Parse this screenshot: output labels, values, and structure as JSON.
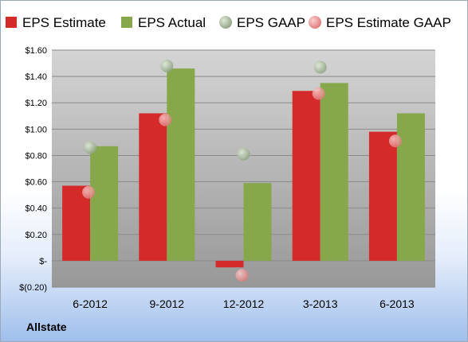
{
  "company_label": "Allstate",
  "chart_data": {
    "type": "bar",
    "categories": [
      "6-2012",
      "9-2012",
      "12-2012",
      "3-2013",
      "6-2013"
    ],
    "series": [
      {
        "name": "EPS Estimate",
        "kind": "bar",
        "color": "#d42a2a",
        "values": [
          0.57,
          1.12,
          -0.05,
          1.29,
          0.98
        ]
      },
      {
        "name": "EPS Actual",
        "kind": "bar",
        "color": "#86a84a",
        "values": [
          0.87,
          1.46,
          0.59,
          1.35,
          1.12
        ]
      },
      {
        "name": "EPS GAAP",
        "kind": "point",
        "color": "#9aac8c",
        "values": [
          0.86,
          1.48,
          0.81,
          1.47,
          null
        ]
      },
      {
        "name": "EPS Estimate GAAP",
        "kind": "point",
        "color": "#ec8a8a",
        "values": [
          0.52,
          1.07,
          -0.11,
          1.27,
          0.91
        ]
      }
    ],
    "yticks": [
      {
        "value": 1.6,
        "label": "$1.60"
      },
      {
        "value": 1.4,
        "label": "$1.40"
      },
      {
        "value": 1.2,
        "label": "$1.20"
      },
      {
        "value": 1.0,
        "label": "$1.00"
      },
      {
        "value": 0.8,
        "label": "$0.80"
      },
      {
        "value": 0.6,
        "label": "$0.60"
      },
      {
        "value": 0.4,
        "label": "$0.40"
      },
      {
        "value": 0.2,
        "label": "$0.20"
      },
      {
        "value": 0.0,
        "label": "$-"
      },
      {
        "value": -0.2,
        "label": "$(0.20)"
      }
    ],
    "ylim": [
      -0.2,
      1.6
    ],
    "grid": true,
    "legend_position": "top"
  }
}
